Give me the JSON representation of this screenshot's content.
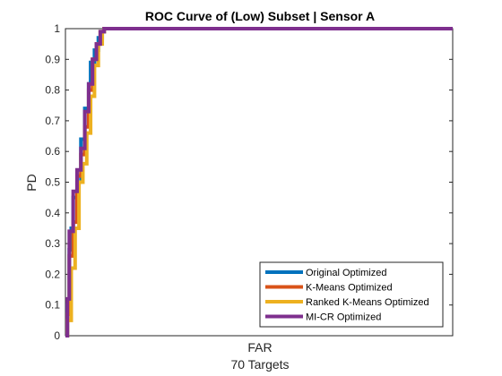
{
  "chart_data": {
    "type": "line",
    "title": "ROC Curve of (Low) Subset | Sensor A",
    "xlabel": "FAR",
    "xlabel_sub": "70 Targets",
    "ylabel": "PD",
    "ylim": [
      0,
      1
    ],
    "yticks": [
      "0",
      "0.1",
      "0.2",
      "0.3",
      "0.4",
      "0.5",
      "0.6",
      "0.7",
      "0.8",
      "0.9",
      "1"
    ],
    "xlim": [
      0,
      1
    ],
    "grid": false,
    "legend_position": "bottom-right",
    "series": [
      {
        "name": "Original Optimized",
        "color": "#0072BD",
        "x": [
          0.0,
          0.005,
          0.005,
          0.01,
          0.01,
          0.015,
          0.015,
          0.02,
          0.02,
          0.03,
          0.03,
          0.04,
          0.04,
          0.05,
          0.05,
          0.06,
          0.06,
          0.065,
          0.065,
          0.075,
          0.075,
          0.085,
          0.085,
          0.095,
          0.095,
          0.1,
          0.1,
          0.2,
          0.6,
          1.0
        ],
        "y": [
          0.0,
          0.0,
          0.1,
          0.1,
          0.28,
          0.28,
          0.35,
          0.35,
          0.45,
          0.45,
          0.5,
          0.5,
          0.64,
          0.64,
          0.74,
          0.74,
          0.82,
          0.82,
          0.89,
          0.89,
          0.93,
          0.93,
          0.97,
          0.97,
          0.99,
          0.99,
          1.0,
          1.0,
          1.0,
          1.0
        ]
      },
      {
        "name": "K-Means Optimized",
        "color": "#D95319",
        "x": [
          0.0,
          0.005,
          0.005,
          0.01,
          0.01,
          0.02,
          0.02,
          0.03,
          0.03,
          0.04,
          0.04,
          0.05,
          0.05,
          0.06,
          0.06,
          0.07,
          0.07,
          0.08,
          0.08,
          0.09,
          0.09,
          0.1,
          0.1,
          0.2,
          0.6,
          1.0
        ],
        "y": [
          0.0,
          0.0,
          0.07,
          0.07,
          0.26,
          0.26,
          0.37,
          0.37,
          0.52,
          0.52,
          0.59,
          0.59,
          0.68,
          0.68,
          0.8,
          0.8,
          0.9,
          0.9,
          0.95,
          0.95,
          0.99,
          0.99,
          1.0,
          1.0,
          1.0,
          1.0
        ]
      },
      {
        "name": "Ranked K-Means Optimized",
        "color": "#EDB120",
        "x": [
          0.0,
          0.005,
          0.005,
          0.015,
          0.015,
          0.025,
          0.025,
          0.035,
          0.035,
          0.045,
          0.045,
          0.055,
          0.055,
          0.065,
          0.065,
          0.075,
          0.075,
          0.085,
          0.085,
          0.095,
          0.095,
          0.1,
          0.1,
          0.2,
          0.6,
          1.0
        ],
        "y": [
          0.0,
          0.0,
          0.05,
          0.05,
          0.22,
          0.22,
          0.35,
          0.35,
          0.5,
          0.5,
          0.56,
          0.56,
          0.66,
          0.66,
          0.78,
          0.78,
          0.88,
          0.88,
          0.95,
          0.95,
          0.99,
          0.99,
          1.0,
          1.0,
          1.0,
          1.0
        ]
      },
      {
        "name": "MI-CR Optimized",
        "color": "#7E2F8E",
        "x": [
          0.0,
          0.005,
          0.005,
          0.01,
          0.01,
          0.02,
          0.02,
          0.03,
          0.03,
          0.04,
          0.04,
          0.05,
          0.05,
          0.06,
          0.06,
          0.07,
          0.07,
          0.08,
          0.08,
          0.09,
          0.09,
          0.1,
          0.1,
          0.2,
          0.6,
          1.0
        ],
        "y": [
          0.0,
          0.0,
          0.12,
          0.12,
          0.34,
          0.34,
          0.47,
          0.47,
          0.54,
          0.54,
          0.61,
          0.61,
          0.73,
          0.73,
          0.82,
          0.82,
          0.9,
          0.9,
          0.95,
          0.95,
          0.99,
          0.99,
          1.0,
          1.0,
          1.0,
          1.0
        ]
      }
    ]
  }
}
